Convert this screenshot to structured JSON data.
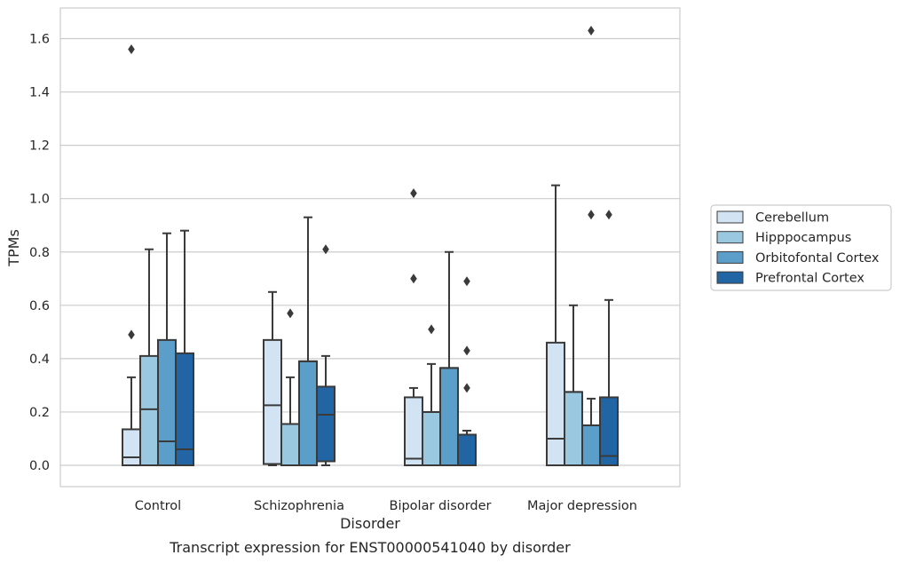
{
  "chart_data": {
    "type": "box",
    "title": "",
    "caption": "Transcript expression for ENST00000541040 by disorder",
    "xlabel": "Disorder",
    "ylabel": "TPMs",
    "ylim": [
      -0.08,
      1.72
    ],
    "yticks": [
      0.0,
      0.2,
      0.4,
      0.6,
      0.8,
      1.0,
      1.2,
      1.4,
      1.6
    ],
    "ytick_labels": [
      "0.0",
      "0.2",
      "0.4",
      "0.6",
      "0.8",
      "1.0",
      "1.2",
      "1.4",
      "1.6"
    ],
    "grid": true,
    "legend_position": "right",
    "categories": [
      "Control",
      "Schizophrenia",
      "Bipolar disorder",
      "Major depression"
    ],
    "series": [
      {
        "name": "Cerebellum",
        "color": "#d2e3f3",
        "boxes": [
          {
            "min": 0.0,
            "q1": 0.0,
            "median": 0.03,
            "q3": 0.135,
            "max": 0.33,
            "outliers": [
              0.49,
              1.56
            ]
          },
          {
            "min": 0.0,
            "q1": 0.005,
            "median": 0.225,
            "q3": 0.47,
            "max": 0.65,
            "outliers": []
          },
          {
            "min": 0.0,
            "q1": 0.0,
            "median": 0.025,
            "q3": 0.255,
            "max": 0.29,
            "outliers": [
              0.7,
              1.02
            ]
          },
          {
            "min": 0.0,
            "q1": 0.0,
            "median": 0.1,
            "q3": 0.46,
            "max": 1.05,
            "outliers": []
          }
        ]
      },
      {
        "name": "Hipppocampus",
        "color": "#9ac8e0",
        "boxes": [
          {
            "min": 0.0,
            "q1": 0.0,
            "median": 0.21,
            "q3": 0.41,
            "max": 0.81,
            "outliers": []
          },
          {
            "min": 0.0,
            "q1": 0.0,
            "median": 0.155,
            "q3": 0.155,
            "max": 0.33,
            "outliers": [
              0.57
            ]
          },
          {
            "min": 0.0,
            "q1": 0.0,
            "median": 0.2,
            "q3": 0.2,
            "max": 0.38,
            "outliers": [
              0.51
            ]
          },
          {
            "min": 0.0,
            "q1": 0.0,
            "median": 0.275,
            "q3": 0.275,
            "max": 0.6,
            "outliers": []
          }
        ]
      },
      {
        "name": "Orbitofontal Cortex",
        "color": "#5a9ec9",
        "boxes": [
          {
            "min": 0.0,
            "q1": 0.0,
            "median": 0.09,
            "q3": 0.47,
            "max": 0.87,
            "outliers": []
          },
          {
            "min": 0.0,
            "q1": 0.0,
            "median": 0.39,
            "q3": 0.39,
            "max": 0.93,
            "outliers": []
          },
          {
            "min": 0.0,
            "q1": 0.0,
            "median": 0.365,
            "q3": 0.365,
            "max": 0.8,
            "outliers": []
          },
          {
            "min": 0.0,
            "q1": 0.0,
            "median": 0.15,
            "q3": 0.15,
            "max": 0.25,
            "outliers": [
              0.94,
              1.63
            ]
          }
        ]
      },
      {
        "name": "Prefrontal Cortex",
        "color": "#2265a4",
        "boxes": [
          {
            "min": 0.0,
            "q1": 0.0,
            "median": 0.06,
            "q3": 0.42,
            "max": 0.88,
            "outliers": []
          },
          {
            "min": 0.0,
            "q1": 0.015,
            "median": 0.19,
            "q3": 0.295,
            "max": 0.41,
            "outliers": [
              0.81
            ]
          },
          {
            "min": 0.0,
            "q1": 0.0,
            "median": 0.115,
            "q3": 0.115,
            "max": 0.13,
            "outliers": [
              0.29,
              0.43,
              0.69
            ]
          },
          {
            "min": 0.0,
            "q1": 0.0,
            "median": 0.035,
            "q3": 0.255,
            "max": 0.62,
            "outliers": [
              0.94
            ]
          }
        ]
      }
    ]
  }
}
